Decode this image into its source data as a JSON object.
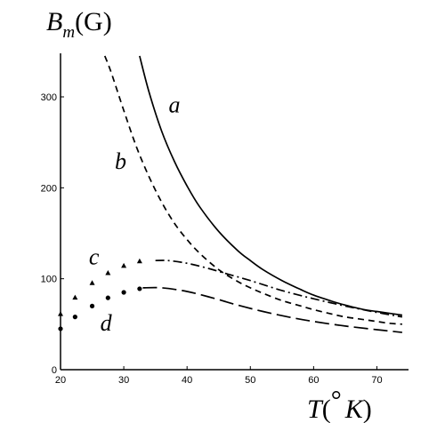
{
  "chart_data": {
    "type": "line",
    "ylabel": {
      "main": "B",
      "sub": "m",
      "unit": "(G)"
    },
    "xlabel": {
      "main": "T",
      "unit_open": "(",
      "unit_deg": "°",
      "unit_K": "K",
      "unit_close": ")"
    },
    "x_ticks": [
      "20",
      "30",
      "40",
      "50",
      "60",
      "70"
    ],
    "y_ticks": [
      "0",
      "100",
      "200",
      "300"
    ],
    "xlim": [
      20,
      75
    ],
    "ylim": [
      0,
      345
    ],
    "series": [
      {
        "name": "a",
        "style": "solid",
        "x": [
          32.5,
          34,
          36,
          38,
          40,
          42,
          45,
          48,
          50,
          52,
          55,
          58,
          60,
          63,
          65,
          68,
          70,
          72,
          74
        ],
        "y": [
          345,
          305,
          262,
          229,
          202,
          179,
          152,
          131,
          120,
          110,
          98,
          88,
          82,
          75,
          71,
          66,
          64,
          62,
          60
        ]
      },
      {
        "name": "b",
        "style": "dashed",
        "x": [
          27,
          28,
          30,
          32,
          34,
          36,
          38,
          40,
          42,
          45,
          48,
          50,
          52,
          55,
          58,
          60,
          63,
          65,
          68,
          70,
          72,
          74
        ],
        "y": [
          345,
          327,
          285,
          245,
          212,
          184,
          161,
          143,
          128,
          110,
          97,
          90,
          84,
          76,
          70,
          66,
          61,
          58,
          55,
          53,
          51,
          50
        ]
      },
      {
        "name": "c",
        "style": "dashdot",
        "x": [
          35,
          37,
          40,
          43,
          46,
          50,
          55,
          60,
          65,
          70,
          74
        ],
        "y": [
          120,
          120,
          117,
          112,
          106,
          98,
          87,
          78,
          70,
          63,
          58
        ]
      },
      {
        "name": "c",
        "style": "triangles",
        "x": [
          20,
          22.3,
          25,
          27.5,
          30,
          32.5
        ],
        "y": [
          61,
          79,
          95,
          106,
          114,
          119
        ]
      },
      {
        "name": "d",
        "style": "longdash",
        "x": [
          33,
          36,
          40,
          44,
          48,
          52,
          56,
          60,
          65,
          70,
          74
        ],
        "y": [
          90,
          90,
          86,
          79,
          71,
          64,
          58,
          53,
          48,
          44,
          41
        ]
      },
      {
        "name": "d",
        "style": "dots",
        "x": [
          20,
          22.3,
          25,
          27.5,
          30,
          32.5
        ],
        "y": [
          45,
          58,
          70,
          79,
          85,
          89
        ]
      }
    ],
    "curve_labels": [
      {
        "text": "a",
        "x": 38,
        "y": 283
      },
      {
        "text": "b",
        "x": 29.5,
        "y": 221
      },
      {
        "text": "c",
        "x": 25.3,
        "y": 116
      },
      {
        "text": "d",
        "x": 27.2,
        "y": 43
      }
    ]
  }
}
